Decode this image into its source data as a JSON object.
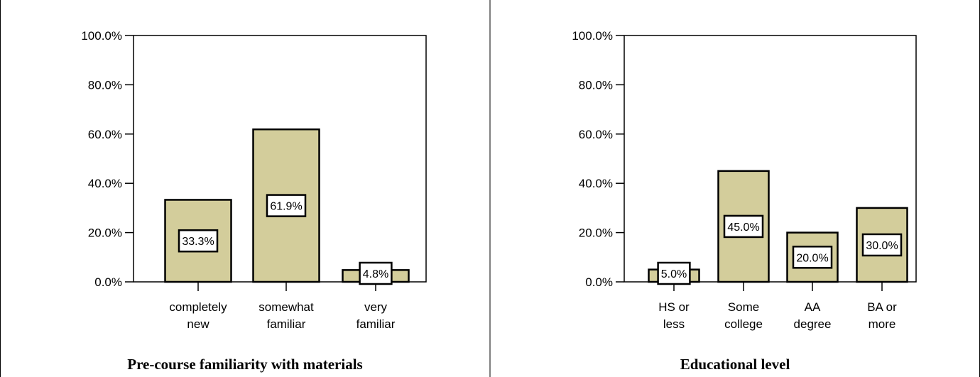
{
  "chart_data": [
    {
      "type": "bar",
      "title": "Pre-course familiarity with materials",
      "categories": [
        [
          "completely",
          "new"
        ],
        [
          "somewhat",
          "familiar"
        ],
        [
          "very",
          "familiar"
        ]
      ],
      "values": [
        33.3,
        61.9,
        4.8
      ],
      "value_labels": [
        "33.3%",
        "61.9%",
        "4.8%"
      ],
      "ylim": [
        0,
        100
      ],
      "yticks": [
        0,
        20,
        40,
        60,
        80,
        100
      ],
      "ytick_labels": [
        "0.0%",
        "20.0%",
        "40.0%",
        "60.0%",
        "80.0%",
        "100.0%"
      ],
      "bar_color": "#d3cd9b",
      "xlabel": "",
      "ylabel": ""
    },
    {
      "type": "bar",
      "title": "Educational level",
      "categories": [
        [
          "HS or",
          "less"
        ],
        [
          "Some",
          "college"
        ],
        [
          "AA",
          "degree"
        ],
        [
          "BA or",
          "more"
        ]
      ],
      "values": [
        5.0,
        45.0,
        20.0,
        30.0
      ],
      "value_labels": [
        "5.0%",
        "45.0%",
        "20.0%",
        "30.0%"
      ],
      "ylim": [
        0,
        100
      ],
      "yticks": [
        0,
        20,
        40,
        60,
        80,
        100
      ],
      "ytick_labels": [
        "0.0%",
        "20.0%",
        "40.0%",
        "60.0%",
        "80.0%",
        "100.0%"
      ],
      "bar_color": "#d3cd9b",
      "xlabel": "",
      "ylabel": ""
    }
  ]
}
